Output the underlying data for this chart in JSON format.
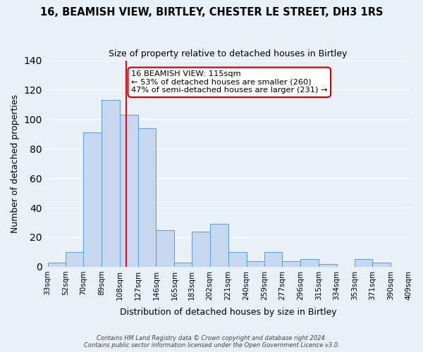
{
  "title": "16, BEAMISH VIEW, BIRTLEY, CHESTER LE STREET, DH3 1RS",
  "subtitle": "Size of property relative to detached houses in Birtley",
  "xlabel": "Distribution of detached houses by size in Birtley",
  "ylabel": "Number of detached properties",
  "bar_color": "#c5d8f0",
  "bar_edge_color": "#5b9bd5",
  "background_color": "#e8f0f8",
  "grid_color": "white",
  "bins": [
    33,
    52,
    70,
    89,
    108,
    127,
    146,
    165,
    183,
    202,
    221,
    240,
    259,
    277,
    296,
    315,
    334,
    353,
    371,
    390,
    409
  ],
  "bin_labels": [
    "33sqm",
    "52sqm",
    "70sqm",
    "89sqm",
    "108sqm",
    "127sqm",
    "146sqm",
    "165sqm",
    "183sqm",
    "202sqm",
    "221sqm",
    "240sqm",
    "259sqm",
    "277sqm",
    "296sqm",
    "315sqm",
    "334sqm",
    "353sqm",
    "371sqm",
    "390sqm",
    "409sqm"
  ],
  "heights": [
    3,
    10,
    91,
    113,
    103,
    94,
    25,
    3,
    24,
    29,
    10,
    4,
    10,
    4,
    5,
    2,
    0,
    5,
    3,
    0,
    1
  ],
  "red_line_x": 115,
  "ylim": [
    0,
    140
  ],
  "yticks": [
    0,
    20,
    40,
    60,
    80,
    100,
    120,
    140
  ],
  "annotation_title": "16 BEAMISH VIEW: 115sqm",
  "annotation_line1": "← 53% of detached houses are smaller (260)",
  "annotation_line2": "47% of semi-detached houses are larger (231) →",
  "annotation_box_color": "white",
  "annotation_box_edge": "#cc0000",
  "footer1": "Contains HM Land Registry data © Crown copyright and database right 2024.",
  "footer2": "Contains public sector information licensed under the Open Government Licence v3.0."
}
